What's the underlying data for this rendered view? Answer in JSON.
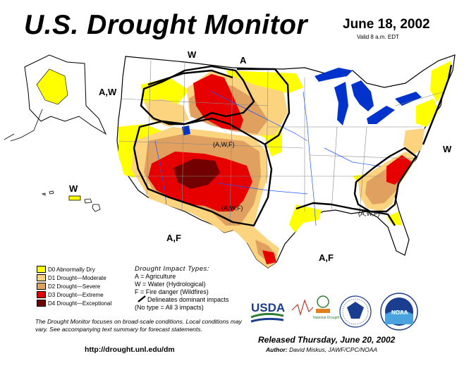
{
  "title": "U.S. Drought Monitor",
  "date": "June 18, 2002",
  "valid": "Valid 8 a.m. EDT",
  "map_labels": {
    "w_north": "W",
    "a_north": "A",
    "aw_alaska": "A,W",
    "w_east": "W",
    "awf_plains": "(A,W,F)",
    "awf_southwest": "(A,W,F)",
    "awf_southeast": "(A,W,F)",
    "af_southwest": "A,F",
    "af_gulf": "A,F",
    "w_hawaii": "W"
  },
  "legend": [
    {
      "label": "D0 Abnormally Dry",
      "color": "#ffff00"
    },
    {
      "label": "D1 Drought—Moderate",
      "color": "#fcd37f"
    },
    {
      "label": "D2 Drought—Severe",
      "color": "#e0a060"
    },
    {
      "label": "D3 Drought—Extreme",
      "color": "#e60000"
    },
    {
      "label": "D4 Drought—Exceptional",
      "color": "#730000"
    }
  ],
  "impact": {
    "heading": "Drought Impact Types:",
    "a": "A = Agriculture",
    "w": "W = Water (Hydrological)",
    "f": "F = Fire danger (Wildfires)",
    "line": "Delineates dominant impacts",
    "notype": "(No type = All 3 impacts)"
  },
  "note": "The Drought Monitor focuses on broad-scale conditions. Local conditions may vary. See accompanying text summary for forecast statements.",
  "url": "http://drought.unl.edu/dm",
  "logos": {
    "usda": "USDA",
    "ndmc": "National Drought Mitigation Center",
    "noaa": "NOAA"
  },
  "released": "Released Thursday, June 20, 2002",
  "author_label": "Author:",
  "author_name": "David Miskus, JAWF/CPC/NOAA"
}
